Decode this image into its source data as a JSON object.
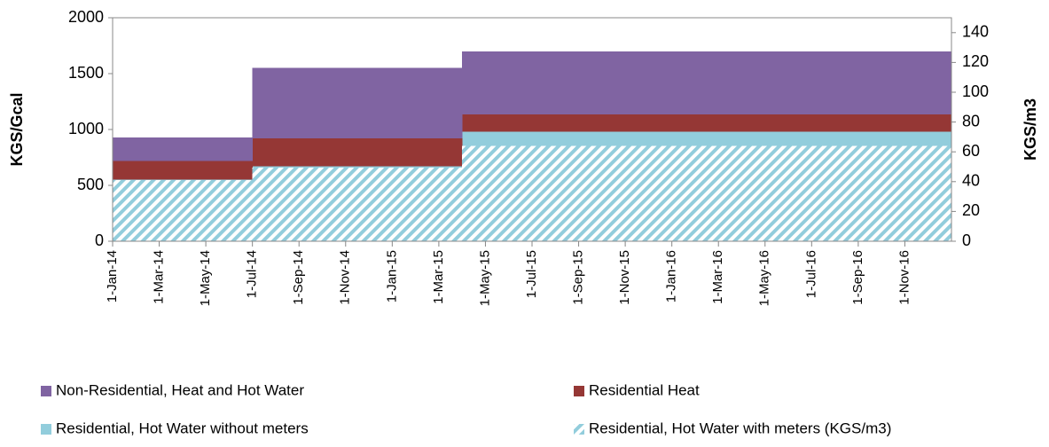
{
  "chart_data": {
    "type": "stepped-area",
    "y_label": "KGS/Gcal",
    "y2_label": "KGS/m3",
    "categories": [
      "1-Jan-14",
      null,
      "1-Mar-14",
      null,
      "1-May-14",
      null,
      "1-Jul-14",
      null,
      "1-Sep-14",
      null,
      "1-Nov-14",
      null,
      "1-Jan-15",
      null,
      "1-Mar-15",
      null,
      "1-May-15",
      null,
      "1-Jul-15",
      null,
      "1-Sep-15",
      null,
      "1-Nov-15",
      null,
      "1-Jan-16",
      null,
      "1-Mar-16",
      null,
      "1-May-16",
      null,
      "1-Jul-16",
      null,
      "1-Sep-16",
      null,
      "1-Nov-16",
      null
    ],
    "ylim": [
      0,
      2000
    ],
    "yticks": [
      0,
      500,
      1000,
      1500,
      2000
    ],
    "y2lim": [
      0,
      150
    ],
    "y2ticks": [
      0,
      20,
      40,
      60,
      80,
      100,
      120,
      140
    ],
    "stacked": true,
    "legend": "bottom",
    "series": [
      {
        "name": "Residential, Hot Water without meters",
        "color": "#92cddc",
        "values": [
          550,
          550,
          550,
          550,
          550,
          550,
          670,
          670,
          670,
          670,
          670,
          670,
          670,
          670,
          670,
          980,
          980,
          980,
          980,
          980,
          980,
          980,
          980,
          980,
          980,
          980,
          980,
          980,
          980,
          980,
          980,
          980,
          980,
          980,
          980,
          980
        ]
      },
      {
        "name": "Residential Heat",
        "color": "#953735",
        "values": [
          170,
          170,
          170,
          170,
          170,
          170,
          250,
          250,
          250,
          250,
          250,
          250,
          250,
          250,
          250,
          155,
          155,
          155,
          155,
          155,
          155,
          155,
          155,
          155,
          155,
          155,
          155,
          155,
          155,
          155,
          155,
          155,
          155,
          155,
          155,
          155
        ]
      },
      {
        "name": "Non-Residential, Heat and Hot Water",
        "color": "#8064a2",
        "values": [
          210,
          210,
          210,
          210,
          210,
          210,
          630,
          630,
          630,
          630,
          630,
          630,
          630,
          630,
          630,
          565,
          565,
          565,
          565,
          565,
          565,
          565,
          565,
          565,
          565,
          565,
          565,
          565,
          565,
          565,
          565,
          565,
          565,
          565,
          565,
          565
        ]
      },
      {
        "name": "Residential, Hot Water with meters (KGS/m3)",
        "color": "#92cddc",
        "axis": "y2",
        "pattern": "hatch",
        "values": [
          41,
          41,
          41,
          41,
          41,
          41,
          49.5,
          49.5,
          49.5,
          49.5,
          49.5,
          49.5,
          49.5,
          49.5,
          49.5,
          64,
          64,
          64,
          64,
          64,
          64,
          64,
          64,
          64,
          64,
          64,
          64,
          64,
          64,
          64,
          64,
          64,
          64,
          64,
          64,
          64
        ]
      }
    ]
  }
}
